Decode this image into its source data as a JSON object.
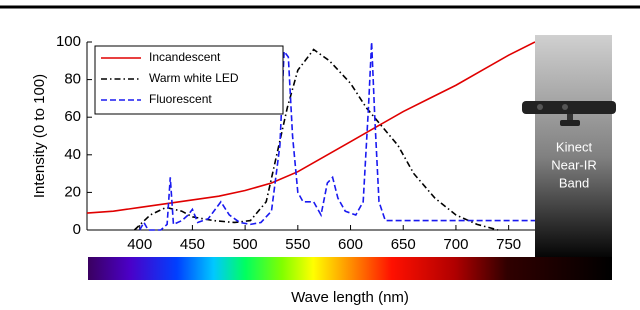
{
  "chart_data": {
    "type": "line",
    "xlabel": "Wave length (nm)",
    "ylabel": "Intensity (0 to 100)",
    "xlim": [
      350,
      775
    ],
    "ylim": [
      0,
      100
    ],
    "xticks": [
      400,
      450,
      500,
      550,
      600,
      650,
      700,
      750
    ],
    "yticks": [
      0,
      20,
      40,
      60,
      80,
      100
    ],
    "legend": "upper left",
    "annotation_lines": [
      "Kinect",
      "Near-IR",
      "Band"
    ],
    "series": [
      {
        "name": "Incandescent",
        "color": "#e00000",
        "dash": "solid",
        "x": [
          350,
          375,
          400,
          425,
          450,
          475,
          500,
          525,
          550,
          575,
          600,
          625,
          650,
          675,
          700,
          725,
          750,
          775
        ],
        "values": [
          9,
          10,
          12,
          14,
          16,
          18,
          21,
          25,
          31,
          39,
          47,
          55,
          63,
          70,
          77,
          85,
          93,
          100
        ]
      },
      {
        "name": "Warm white LED",
        "color": "#000000",
        "dash": "dashdot",
        "x": [
          395,
          410,
          425,
          440,
          450,
          470,
          490,
          505,
          520,
          530,
          540,
          550,
          565,
          580,
          600,
          615,
          630,
          645,
          660,
          680,
          700,
          720,
          740
        ],
        "values": [
          0,
          8,
          12,
          10,
          7,
          5,
          4,
          5,
          15,
          40,
          65,
          85,
          96,
          90,
          78,
          65,
          55,
          45,
          30,
          17,
          8,
          3,
          0
        ]
      },
      {
        "name": "Fluorescent",
        "color": "#1a1af0",
        "dash": "dashed",
        "x": [
          400,
          404,
          408,
          420,
          426,
          429,
          432,
          440,
          446,
          450,
          455,
          465,
          477,
          485,
          495,
          505,
          515,
          525,
          533,
          537,
          541,
          545,
          550,
          555,
          565,
          572,
          578,
          583,
          588,
          595,
          605,
          612,
          617,
          620,
          623,
          627,
          630,
          633,
          775
        ],
        "values": [
          0,
          4,
          0,
          0,
          3,
          28,
          3,
          5,
          8,
          11,
          4,
          6,
          15,
          8,
          4,
          3,
          4,
          10,
          45,
          95,
          92,
          50,
          20,
          15,
          15,
          8,
          25,
          28,
          17,
          10,
          8,
          15,
          65,
          100,
          60,
          15,
          10,
          5,
          5
        ]
      }
    ]
  }
}
